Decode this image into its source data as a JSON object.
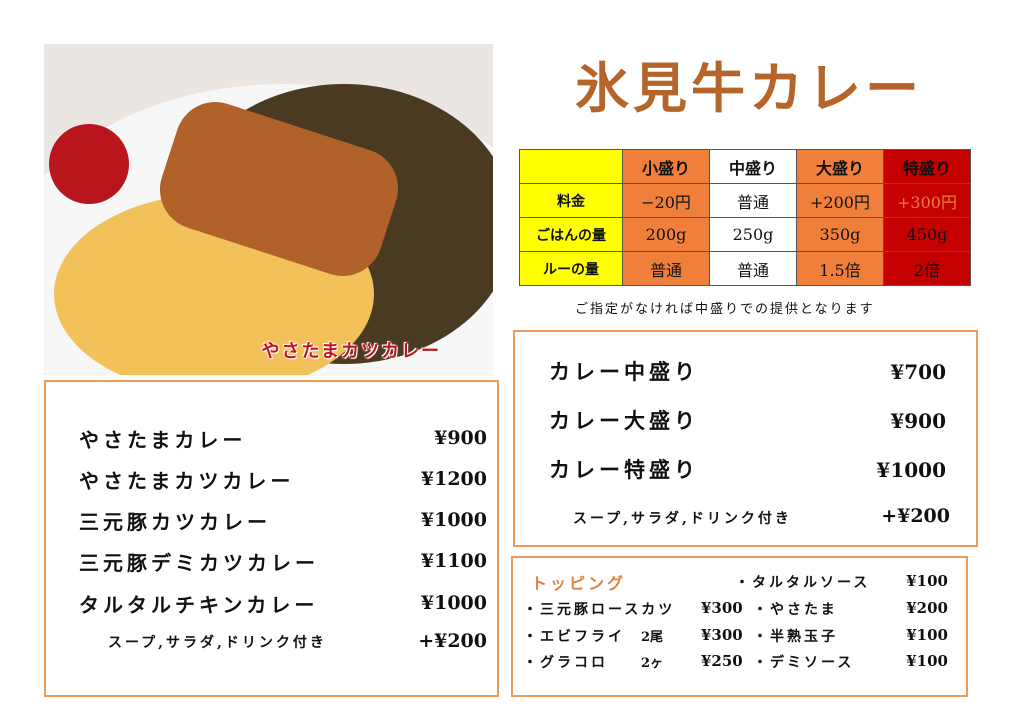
{
  "photo": {
    "caption": "やさたまカツカレー"
  },
  "title": "氷見牛カレー",
  "size_table": {
    "headers": [
      "",
      "小盛り",
      "中盛り",
      "大盛り",
      "特盛り"
    ],
    "rows": [
      {
        "label": "料金",
        "values": [
          "−20円",
          "普通",
          "+200円",
          "+300円"
        ]
      },
      {
        "label": "ごはんの量",
        "values": [
          "200g",
          "250g",
          "350g",
          "450g"
        ]
      },
      {
        "label": "ルーの量",
        "values": [
          "普通",
          "普通",
          "1.5倍",
          "2倍"
        ]
      }
    ],
    "colors": {
      "label": "#ffff00",
      "small": "#ef7f3a",
      "medium": "#ffffff",
      "large": "#ef7f3a",
      "extra": "#c40000"
    }
  },
  "note": "ご指定がなければ中盛りでの提供となります",
  "left_menu": {
    "items": [
      {
        "name": "やさたまカレー",
        "price": "¥900"
      },
      {
        "name": "やさたまカツカレー",
        "price": "¥1200"
      },
      {
        "name": "三元豚カツカレー",
        "price": "¥1000"
      },
      {
        "name": "三元豚デミカツカレー",
        "price": "¥1100"
      },
      {
        "name": "タルタルチキンカレー",
        "price": "¥1000"
      }
    ],
    "set_note": "スープ,サラダ,ドリンク付き",
    "set_price": "+¥200"
  },
  "right_menu": {
    "items": [
      {
        "name": "カレー中盛り",
        "price": "¥700"
      },
      {
        "name": "カレー大盛り",
        "price": "¥900"
      },
      {
        "name": "カレー特盛り",
        "price": "¥1000"
      }
    ],
    "set_note": "スープ,サラダ,ドリンク付き",
    "set_price": "+¥200"
  },
  "toppings": {
    "title": "トッピング",
    "left": [
      {
        "name": "・三元豚ロースカツ",
        "qty": "",
        "price": "¥300"
      },
      {
        "name": "・エビフライ",
        "qty": "2尾",
        "price": "¥300"
      },
      {
        "name": "・グラコロ",
        "qty": "2ヶ",
        "price": "¥250"
      }
    ],
    "right": [
      {
        "name": "・タルタルソース",
        "price": "¥100"
      },
      {
        "name": "・やさたま",
        "price": "¥200"
      },
      {
        "name": "・半熟玉子",
        "price": "¥100"
      },
      {
        "name": "・デミソース",
        "price": "¥100"
      }
    ]
  },
  "accent": "#ee9a5a",
  "title_color": "#b5652a"
}
